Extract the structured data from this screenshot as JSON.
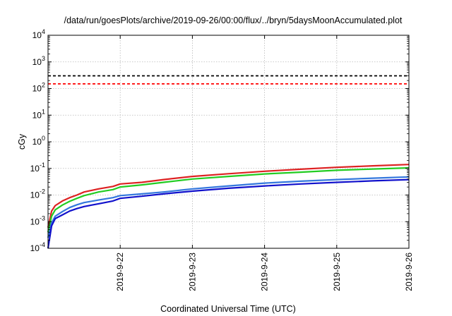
{
  "chart_data": {
    "type": "line",
    "title": "/data/run/goesPlots/archive/2019-09-26/00:00/flux/../bryn/5daysMoonAccumulated.plot",
    "xlabel": "Coordinated Universal Time (UTC)",
    "ylabel": "cGy",
    "yscale": "log",
    "ylim": [
      0.0001,
      10000
    ],
    "y_ticks": [
      {
        "value": 0.0001,
        "base": "10",
        "exp": "-4"
      },
      {
        "value": 0.001,
        "base": "10",
        "exp": "-3"
      },
      {
        "value": 0.01,
        "base": "10",
        "exp": "-2"
      },
      {
        "value": 0.1,
        "base": "10",
        "exp": "-1"
      },
      {
        "value": 1,
        "base": "10",
        "exp": "0"
      },
      {
        "value": 10,
        "base": "10",
        "exp": "1"
      },
      {
        "value": 100,
        "base": "10",
        "exp": "2"
      },
      {
        "value": 1000,
        "base": "10",
        "exp": "3"
      },
      {
        "value": 10000,
        "base": "10",
        "exp": "4"
      }
    ],
    "xlim": [
      "2019-09-21 00:00",
      "2019-09-26 00:00"
    ],
    "x_ticks": [
      "2019-9-22",
      "2019-9-23",
      "2019-9-24",
      "2019-9-25",
      "2019-9-26"
    ],
    "grid": true,
    "reference_lines": [
      {
        "value": 300,
        "color": "#000000",
        "style": "dashed"
      },
      {
        "value": 150,
        "color": "#ff0000",
        "style": "dashed"
      }
    ],
    "series": [
      {
        "color": "#dd2222",
        "x": [
          "2019-09-21 00:00",
          "2019-09-21 01:12",
          "2019-09-21 02:24",
          "2019-09-21 04:48",
          "2019-09-21 07:12",
          "2019-09-21 09:36",
          "2019-09-21 12:00",
          "2019-09-21 16:48",
          "2019-09-21 21:36",
          "2019-09-22 00:00",
          "2019-09-22 07:12",
          "2019-09-22 14:24",
          "2019-09-23 00:00",
          "2019-09-23 12:00",
          "2019-09-24 00:00",
          "2019-09-24 12:00",
          "2019-09-25 00:00",
          "2019-09-25 12:00",
          "2019-09-26 00:00"
        ],
        "y": [
          0.0006,
          0.0025,
          0.004,
          0.006,
          0.008,
          0.01,
          0.013,
          0.017,
          0.021,
          0.026,
          0.03,
          0.038,
          0.05,
          0.063,
          0.078,
          0.093,
          0.11,
          0.125,
          0.14
        ]
      },
      {
        "color": "#22cc22",
        "x": [
          "2019-09-21 00:00",
          "2019-09-21 01:12",
          "2019-09-21 02:24",
          "2019-09-21 04:48",
          "2019-09-21 07:12",
          "2019-09-21 09:36",
          "2019-09-21 12:00",
          "2019-09-21 16:48",
          "2019-09-21 21:36",
          "2019-09-22 00:00",
          "2019-09-22 07:12",
          "2019-09-22 14:24",
          "2019-09-23 00:00",
          "2019-09-23 12:00",
          "2019-09-24 00:00",
          "2019-09-24 12:00",
          "2019-09-25 00:00",
          "2019-09-25 12:00",
          "2019-09-26 00:00"
        ],
        "y": [
          0.0004,
          0.0016,
          0.0028,
          0.0042,
          0.0058,
          0.0075,
          0.0095,
          0.013,
          0.016,
          0.02,
          0.024,
          0.03,
          0.04,
          0.05,
          0.062,
          0.072,
          0.085,
          0.095,
          0.105
        ]
      },
      {
        "color": "#3377dd",
        "x": [
          "2019-09-21 00:00",
          "2019-09-21 01:12",
          "2019-09-21 02:24",
          "2019-09-21 04:48",
          "2019-09-21 07:12",
          "2019-09-21 09:36",
          "2019-09-21 12:00",
          "2019-09-21 16:48",
          "2019-09-21 21:36",
          "2019-09-22 00:00",
          "2019-09-22 07:12",
          "2019-09-22 14:24",
          "2019-09-23 00:00",
          "2019-09-23 12:00",
          "2019-09-24 00:00",
          "2019-09-24 12:00",
          "2019-09-25 00:00",
          "2019-09-25 12:00",
          "2019-09-26 00:00"
        ],
        "y": [
          0.00025,
          0.0009,
          0.0016,
          0.0024,
          0.0034,
          0.0043,
          0.0052,
          0.0065,
          0.008,
          0.0095,
          0.011,
          0.013,
          0.017,
          0.022,
          0.028,
          0.033,
          0.038,
          0.043,
          0.048
        ]
      },
      {
        "color": "#1111cc",
        "x": [
          "2019-09-21 00:00",
          "2019-09-21 01:12",
          "2019-09-21 02:24",
          "2019-09-21 04:48",
          "2019-09-21 07:12",
          "2019-09-21 09:36",
          "2019-09-21 12:00",
          "2019-09-21 16:48",
          "2019-09-21 21:36",
          "2019-09-22 00:00",
          "2019-09-22 07:12",
          "2019-09-22 14:24",
          "2019-09-23 00:00",
          "2019-09-23 12:00",
          "2019-09-24 00:00",
          "2019-09-24 12:00",
          "2019-09-25 00:00",
          "2019-09-25 12:00",
          "2019-09-26 00:00"
        ],
        "y": [
          0.0001,
          0.0007,
          0.0013,
          0.0018,
          0.0025,
          0.0031,
          0.0037,
          0.0047,
          0.006,
          0.0075,
          0.009,
          0.011,
          0.014,
          0.018,
          0.022,
          0.026,
          0.03,
          0.034,
          0.038
        ]
      }
    ]
  }
}
